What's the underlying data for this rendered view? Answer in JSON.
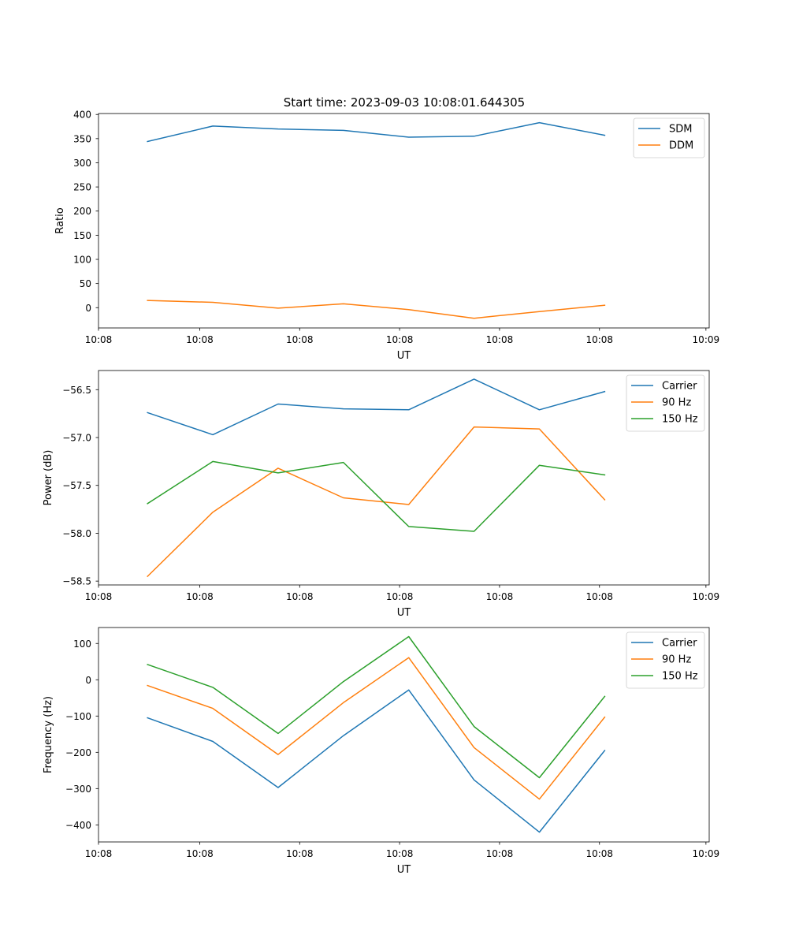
{
  "title": "Start time: 2023-09-03 10:08:01.644305",
  "colors": {
    "blue": "#1f77b4",
    "orange": "#ff7f0e",
    "green": "#2ca02c"
  },
  "chart_data": [
    {
      "type": "line",
      "title": "Start time: 2023-09-03 10:08:01.644305",
      "xlabel": "UT",
      "ylabel": "Ratio",
      "x": [
        0,
        1,
        2,
        3,
        4,
        5,
        6,
        7
      ],
      "xlim": [
        -0.75,
        8.6
      ],
      "xticks": [
        -0.75,
        0.8,
        2.33,
        3.86,
        5.39,
        6.92,
        8.55
      ],
      "xtick_labels": [
        "10:08",
        "10:08",
        "10:08",
        "10:08",
        "10:08",
        "10:08",
        "10:09"
      ],
      "ylim": [
        -42,
        402
      ],
      "yticks": [
        0,
        50,
        100,
        150,
        200,
        250,
        300,
        350,
        400
      ],
      "ytick_labels": [
        "0",
        "50",
        "100",
        "150",
        "200",
        "250",
        "300",
        "350",
        "400"
      ],
      "legend": "top-right",
      "series": [
        {
          "name": "SDM",
          "color": "#1f77b4",
          "values": [
            344,
            376,
            370,
            367,
            353,
            355,
            383,
            357
          ]
        },
        {
          "name": "DDM",
          "color": "#ff7f0e",
          "values": [
            15,
            11,
            -1,
            8,
            -4,
            -22,
            -8,
            5
          ]
        }
      ]
    },
    {
      "type": "line",
      "title": "",
      "xlabel": "UT",
      "ylabel": "Power (dB)",
      "x": [
        0,
        1,
        2,
        3,
        4,
        5,
        6,
        7
      ],
      "xlim": [
        -0.75,
        8.6
      ],
      "xticks": [
        -0.75,
        0.8,
        2.33,
        3.86,
        5.39,
        6.92,
        8.55
      ],
      "xtick_labels": [
        "10:08",
        "10:08",
        "10:08",
        "10:08",
        "10:08",
        "10:08",
        "10:09"
      ],
      "ylim": [
        -58.54,
        -56.3
      ],
      "yticks": [
        -58.5,
        -58.0,
        -57.5,
        -57.0,
        -56.5
      ],
      "ytick_labels": [
        "−58.5",
        "−58.0",
        "−57.5",
        "−57.0",
        "−56.5"
      ],
      "legend": "top-right",
      "series": [
        {
          "name": "Carrier",
          "color": "#1f77b4",
          "values": [
            -56.74,
            -56.97,
            -56.65,
            -56.7,
            -56.71,
            -56.39,
            -56.71,
            -56.52
          ]
        },
        {
          "name": "90 Hz",
          "color": "#ff7f0e",
          "values": [
            -58.45,
            -57.78,
            -57.32,
            -57.63,
            -57.7,
            -56.89,
            -56.91,
            -57.65
          ]
        },
        {
          "name": "150 Hz",
          "color": "#2ca02c",
          "values": [
            -57.69,
            -57.25,
            -57.37,
            -57.26,
            -57.93,
            -57.98,
            -57.29,
            -57.39
          ]
        }
      ]
    },
    {
      "type": "line",
      "title": "",
      "xlabel": "UT",
      "ylabel": "Frequency (Hz)",
      "x": [
        0,
        1,
        2,
        3,
        4,
        5,
        6,
        7
      ],
      "xlim": [
        -0.75,
        8.6
      ],
      "xticks": [
        -0.75,
        0.8,
        2.33,
        3.86,
        5.39,
        6.92,
        8.55
      ],
      "xtick_labels": [
        "10:08",
        "10:08",
        "10:08",
        "10:08",
        "10:08",
        "10:08",
        "10:09"
      ],
      "ylim": [
        -447,
        144
      ],
      "yticks": [
        -400,
        -300,
        -200,
        -100,
        0,
        100
      ],
      "ytick_labels": [
        "−400",
        "−300",
        "−200",
        "−100",
        "0",
        "100"
      ],
      "legend": "top-right",
      "series": [
        {
          "name": "Carrier",
          "color": "#1f77b4",
          "values": [
            -105,
            -170,
            -297,
            -154,
            -28,
            -276,
            -420,
            -195
          ]
        },
        {
          "name": "90 Hz",
          "color": "#ff7f0e",
          "values": [
            -16,
            -79,
            -206,
            -63,
            61,
            -187,
            -329,
            -103
          ]
        },
        {
          "name": "150 Hz",
          "color": "#2ca02c",
          "values": [
            42,
            -21,
            -148,
            -5,
            119,
            -129,
            -270,
            -46
          ]
        }
      ]
    }
  ]
}
